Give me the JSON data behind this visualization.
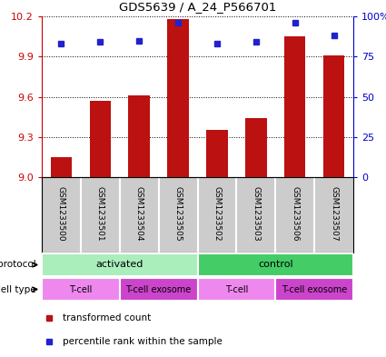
{
  "title": "GDS5639 / A_24_P566701",
  "samples": [
    "GSM1233500",
    "GSM1233501",
    "GSM1233504",
    "GSM1233505",
    "GSM1233502",
    "GSM1233503",
    "GSM1233506",
    "GSM1233507"
  ],
  "bar_values": [
    9.15,
    9.57,
    9.61,
    10.18,
    9.35,
    9.44,
    10.05,
    9.91
  ],
  "dot_values": [
    83,
    84,
    85,
    96,
    83,
    84,
    96,
    88
  ],
  "ylim_left": [
    9.0,
    10.2
  ],
  "ylim_right": [
    0,
    100
  ],
  "yticks_left": [
    9.0,
    9.3,
    9.6,
    9.9,
    10.2
  ],
  "yticks_right": [
    0,
    25,
    50,
    75,
    100
  ],
  "bar_color": "#BB1111",
  "dot_color": "#2222CC",
  "protocol_groups": [
    {
      "label": "activated",
      "start": 0,
      "end": 4,
      "color": "#AAEEBB"
    },
    {
      "label": "control",
      "start": 4,
      "end": 8,
      "color": "#44CC66"
    }
  ],
  "cell_type_groups": [
    {
      "label": "T-cell",
      "start": 0,
      "end": 2,
      "color": "#EE88EE"
    },
    {
      "label": "T-cell exosome",
      "start": 2,
      "end": 4,
      "color": "#CC44CC"
    },
    {
      "label": "T-cell",
      "start": 4,
      "end": 6,
      "color": "#EE88EE"
    },
    {
      "label": "T-cell exosome",
      "start": 6,
      "end": 8,
      "color": "#CC44CC"
    }
  ],
  "legend_items": [
    {
      "label": "transformed count",
      "color": "#BB1111"
    },
    {
      "label": "percentile rank within the sample",
      "color": "#2222CC"
    }
  ],
  "sample_bg_color": "#CCCCCC",
  "background_color": "#FFFFFF",
  "left_axis_color": "#CC0000",
  "right_axis_color": "#0000CC"
}
